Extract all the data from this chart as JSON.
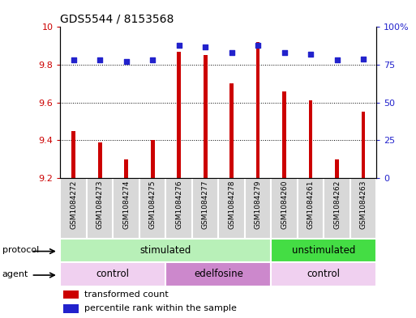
{
  "title": "GDS5544 / 8153568",
  "samples": [
    "GSM1084272",
    "GSM1084273",
    "GSM1084274",
    "GSM1084275",
    "GSM1084276",
    "GSM1084277",
    "GSM1084278",
    "GSM1084279",
    "GSM1084260",
    "GSM1084261",
    "GSM1084262",
    "GSM1084263"
  ],
  "bar_values": [
    9.45,
    9.39,
    9.3,
    9.4,
    9.87,
    9.85,
    9.7,
    9.92,
    9.66,
    9.61,
    9.3,
    9.55
  ],
  "dot_values": [
    78,
    78,
    77,
    78,
    88,
    87,
    83,
    88,
    83,
    82,
    78,
    79
  ],
  "bar_bottom": 9.2,
  "ylim_left": [
    9.2,
    10.0
  ],
  "ylim_right": [
    0,
    100
  ],
  "yticks_left": [
    9.2,
    9.4,
    9.6,
    9.8,
    10.0
  ],
  "ytick_labels_left": [
    "9.2",
    "9.4",
    "9.6",
    "9.8",
    "10"
  ],
  "yticks_right": [
    0,
    25,
    50,
    75,
    100
  ],
  "ytick_labels_right": [
    "0",
    "25",
    "50",
    "75",
    "100%"
  ],
  "bar_color": "#cc0000",
  "dot_color": "#2222cc",
  "protocol_groups": [
    {
      "label": "stimulated",
      "start": 0,
      "end": 8,
      "color": "#b8f0b8"
    },
    {
      "label": "unstimulated",
      "start": 8,
      "end": 12,
      "color": "#44dd44"
    }
  ],
  "agent_groups": [
    {
      "label": "control",
      "start": 0,
      "end": 4,
      "color": "#f0d0f0"
    },
    {
      "label": "edelfosine",
      "start": 4,
      "end": 8,
      "color": "#cc88cc"
    },
    {
      "label": "control",
      "start": 8,
      "end": 12,
      "color": "#f0d0f0"
    }
  ],
  "legend_bar_label": "transformed count",
  "legend_dot_label": "percentile rank within the sample",
  "bg_color": "#ffffff",
  "tick_label_color_left": "#cc0000",
  "tick_label_color_right": "#2222cc",
  "cell_bg_color": "#d8d8d8",
  "cell_border_color": "#ffffff",
  "bar_width": 0.15
}
